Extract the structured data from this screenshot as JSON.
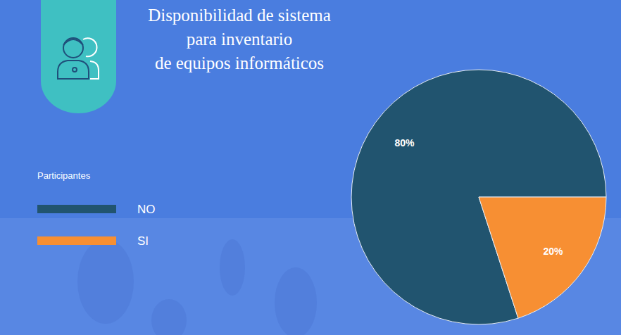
{
  "chart_data": {
    "type": "pie",
    "title": "Disponibilidad de sistema\npara inventario\nde equipos informáticos",
    "legend_title": "Participantes",
    "categories": [
      "NO",
      "SI"
    ],
    "values": [
      80,
      20
    ],
    "value_labels": [
      "80%",
      "20%"
    ],
    "colors": [
      "#21546f",
      "#f78f33"
    ],
    "data_labels": true,
    "legend": "left"
  }
}
